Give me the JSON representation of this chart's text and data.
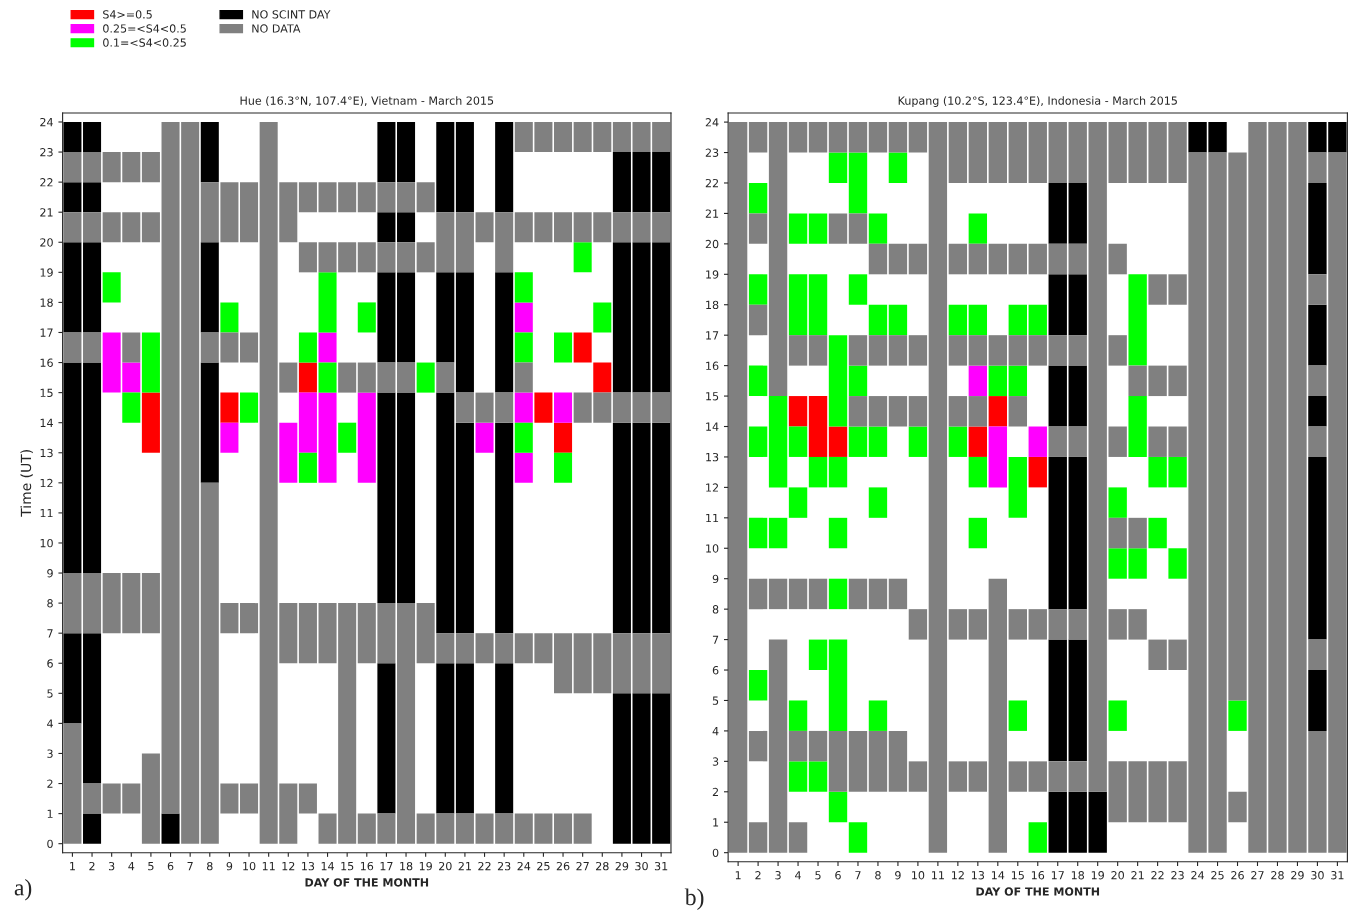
{
  "chart_data": [
    {
      "type": "bar",
      "title": "Hue (16.3°N, 107.4°E), Vietnam - March 2015",
      "xlabel": "DAY OF THE MONTH",
      "ylabel": "Time (UT)",
      "legend": "top left",
      "annotations": [
        "a)"
      ],
      "xlim": [
        0.5,
        31.5
      ],
      "xticks": [
        1,
        2,
        3,
        4,
        5,
        6,
        7,
        8,
        9,
        10,
        11,
        12,
        13,
        14,
        15,
        16,
        17,
        18,
        19,
        20,
        21,
        22,
        23,
        24,
        25,
        26,
        27,
        28,
        29,
        30,
        31
      ],
      "ylim": [
        -0.3,
        24.3
      ],
      "yticks": [
        0,
        1,
        2,
        3,
        4,
        5,
        6,
        7,
        8,
        9,
        10,
        11,
        12,
        13,
        14,
        15,
        16,
        17,
        18,
        19,
        20,
        21,
        22,
        23,
        24
      ],
      "series": [
        {
          "name": "S4>=0.5",
          "color": "#ff0000",
          "x": [
            5,
            9,
            13,
            25,
            26,
            27,
            28
          ],
          "base": [
            13,
            14,
            15,
            14,
            13,
            16,
            15
          ],
          "values": [
            2,
            1,
            1,
            1,
            1,
            1,
            1
          ]
        },
        {
          "name": "0.25=<S4<0.5",
          "color": "#ff00ff",
          "x": [
            3,
            4,
            9,
            12,
            13,
            14,
            16,
            22,
            24,
            26
          ],
          "base": [
            15,
            15,
            13,
            12,
            13,
            12,
            12,
            13,
            12,
            14
          ],
          "values": [
            2,
            1,
            1,
            2,
            2,
            3,
            3,
            1,
            1,
            1
          ]
        },
        {
          "color": "#ff00ff",
          "x": [
            14,
            24
          ],
          "base": [
            16,
            14
          ],
          "values": [
            1,
            1
          ]
        },
        {
          "color": "#ff00ff",
          "x": [
            24
          ],
          "base": [
            17
          ],
          "values": [
            1
          ]
        },
        {
          "name": "0.1=<S4<0.25",
          "color": "#00ff00",
          "x": [
            3,
            4,
            5,
            9,
            10,
            13,
            14,
            15,
            16,
            19,
            24,
            26,
            27,
            28
          ],
          "base": [
            18,
            14,
            15,
            17,
            14,
            12,
            15,
            13,
            17,
            15,
            13,
            12,
            19,
            17
          ],
          "values": [
            1,
            1,
            2,
            1,
            1,
            1,
            1,
            1,
            1,
            1,
            1,
            1,
            1,
            1
          ]
        },
        {
          "color": "#00ff00",
          "x": [
            13,
            14,
            24,
            26
          ],
          "base": [
            16,
            17,
            16,
            16
          ],
          "values": [
            1,
            2,
            1,
            1
          ]
        },
        {
          "color": "#00ff00",
          "x": [
            24
          ],
          "base": [
            18
          ],
          "values": [
            1
          ]
        },
        {
          "name": "NO SCINT DAY",
          "color": "#000000",
          "x": [
            1,
            2,
            6,
            8,
            17,
            18,
            20,
            21,
            23,
            29,
            30,
            31
          ],
          "base": [
            4,
            0,
            0,
            12,
            1,
            8,
            1,
            1,
            1,
            0,
            0,
            0
          ],
          "values": [
            3,
            1,
            1,
            4,
            5,
            7,
            5,
            5,
            5,
            5,
            5,
            5
          ]
        },
        {
          "color": "#000000",
          "x": [
            1,
            2,
            8,
            17,
            18,
            20,
            21,
            23,
            29,
            30,
            31
          ],
          "base": [
            9,
            2,
            17,
            8,
            16,
            7,
            7,
            7,
            7,
            7,
            7
          ],
          "values": [
            7,
            5,
            3,
            7,
            3,
            8,
            7,
            7,
            7,
            7,
            7
          ]
        },
        {
          "color": "#000000",
          "x": [
            1,
            2,
            8,
            17,
            18,
            20,
            21,
            23,
            29,
            30,
            31
          ],
          "base": [
            17,
            9,
            22,
            16,
            20,
            16,
            15,
            15,
            15,
            15,
            15
          ],
          "values": [
            3,
            7,
            2,
            3,
            1,
            3,
            4,
            4,
            5,
            5,
            5
          ]
        },
        {
          "color": "#000000",
          "x": [
            1,
            2,
            17,
            18,
            20,
            21,
            23,
            29,
            30,
            31
          ],
          "base": [
            21,
            17,
            20,
            22,
            21,
            21,
            21,
            21,
            21,
            21
          ],
          "values": [
            1,
            3,
            1,
            2,
            3,
            3,
            3,
            2,
            2,
            2
          ]
        },
        {
          "color": "#000000",
          "x": [
            1,
            2,
            17
          ],
          "base": [
            23,
            21,
            22
          ],
          "values": [
            1,
            1,
            2
          ]
        },
        {
          "color": "#000000",
          "x": [
            2
          ],
          "base": [
            23
          ],
          "values": [
            1
          ]
        },
        {
          "name": "NO DATA",
          "color": "#808080",
          "x": [
            1,
            2,
            3,
            4,
            5,
            6,
            7,
            8,
            9,
            10,
            11,
            12,
            13,
            14,
            15,
            16,
            17,
            18,
            19,
            20,
            21,
            22,
            23,
            24,
            25,
            26,
            27,
            28,
            29,
            30,
            31
          ],
          "base": [
            0,
            1,
            1,
            1,
            0,
            1,
            0,
            0,
            1,
            1,
            0,
            0,
            1,
            0,
            0,
            0,
            0,
            0,
            0,
            0,
            0,
            0,
            0,
            0,
            0,
            0,
            0,
            5,
            5,
            5,
            5
          ],
          "values": [
            4,
            1,
            1,
            1,
            3,
            23,
            24,
            12,
            1,
            1,
            24,
            2,
            1,
            1,
            8,
            1,
            1,
            8,
            1,
            1,
            1,
            1,
            1,
            1,
            1,
            1,
            1,
            2,
            2,
            2,
            2
          ]
        },
        {
          "color": "#808080",
          "x": [
            1,
            2,
            3,
            4,
            5,
            8,
            9,
            10,
            12,
            13,
            14,
            15,
            16,
            17,
            18,
            19,
            20,
            21,
            22,
            23,
            24,
            25,
            26,
            27,
            28,
            29,
            30,
            31
          ],
          "base": [
            7,
            7,
            7,
            7,
            7,
            16,
            7,
            7,
            6,
            6,
            6,
            15,
            6,
            6,
            15,
            6,
            6,
            6,
            6,
            6,
            6,
            6,
            5,
            5,
            14,
            14,
            14,
            14
          ],
          "values": [
            2,
            2,
            2,
            2,
            2,
            1,
            1,
            1,
            2,
            2,
            2,
            1,
            2,
            2,
            1,
            2,
            1,
            1,
            1,
            1,
            1,
            1,
            2,
            2,
            1,
            1,
            1,
            1
          ]
        },
        {
          "color": "#808080",
          "x": [
            1,
            2,
            3,
            4,
            5,
            8,
            9,
            10,
            12,
            13,
            14,
            15,
            16,
            17,
            18,
            19,
            20,
            21,
            22,
            23,
            24,
            25,
            26,
            27,
            28,
            29,
            30,
            31
          ],
          "base": [
            16,
            16,
            20,
            16,
            20,
            20,
            16,
            16,
            15,
            19,
            19,
            19,
            15,
            15,
            19,
            19,
            15,
            14,
            14,
            14,
            15,
            20,
            20,
            14,
            20,
            20,
            20,
            20
          ],
          "values": [
            1,
            1,
            1,
            1,
            1,
            2,
            1,
            1,
            1,
            1,
            1,
            1,
            1,
            1,
            1,
            1,
            1,
            1,
            1,
            1,
            1,
            1,
            1,
            1,
            1,
            1,
            1,
            1
          ]
        },
        {
          "color": "#808080",
          "x": [
            1,
            2,
            3,
            4,
            5,
            9,
            10,
            12,
            13,
            14,
            15,
            16,
            17,
            18,
            19,
            20,
            21,
            22,
            23,
            24,
            25,
            26,
            27,
            28,
            29,
            30,
            31
          ],
          "base": [
            20,
            20,
            22,
            20,
            22,
            20,
            20,
            20,
            21,
            21,
            21,
            19,
            19,
            21,
            21,
            19,
            19,
            20,
            19,
            20,
            23,
            23,
            20,
            23,
            23,
            23,
            23
          ],
          "values": [
            1,
            1,
            1,
            1,
            1,
            2,
            2,
            2,
            1,
            1,
            1,
            1,
            1,
            1,
            1,
            2,
            2,
            1,
            2,
            1,
            1,
            1,
            1,
            1,
            1,
            1,
            1
          ]
        },
        {
          "color": "#808080",
          "x": [
            1,
            2,
            4,
            16,
            17,
            24,
            27
          ],
          "base": [
            22,
            22,
            22,
            21,
            21,
            23,
            23
          ],
          "values": [
            1,
            1,
            1,
            1,
            1,
            1,
            1
          ]
        }
      ]
    },
    {
      "type": "bar",
      "title": "Kupang (10.2°S, 123.4°E), Indonesia - March 2015",
      "xlabel": "DAY OF THE MONTH",
      "annotations": [
        "b)"
      ],
      "xlim": [
        0.5,
        31.5
      ],
      "xticks": [
        1,
        2,
        3,
        4,
        5,
        6,
        7,
        8,
        9,
        10,
        11,
        12,
        13,
        14,
        15,
        16,
        17,
        18,
        19,
        20,
        21,
        22,
        23,
        24,
        25,
        26,
        27,
        28,
        29,
        30,
        31
      ],
      "ylim": [
        -0.3,
        24.3
      ],
      "yticks": [
        0,
        1,
        2,
        3,
        4,
        5,
        6,
        7,
        8,
        9,
        10,
        11,
        12,
        13,
        14,
        15,
        16,
        17,
        18,
        19,
        20,
        21,
        22,
        23,
        24
      ],
      "series": [
        {
          "color": "#ff0000",
          "x": [
            4,
            5,
            6,
            13,
            14,
            16
          ],
          "base": [
            14,
            13,
            13,
            13,
            14,
            12
          ],
          "values": [
            1,
            2,
            1,
            1,
            1,
            1
          ]
        },
        {
          "color": "#ff00ff",
          "x": [
            13,
            14,
            16
          ],
          "base": [
            15,
            12,
            13
          ],
          "values": [
            1,
            2,
            1
          ]
        },
        {
          "color": "#00ff00",
          "x": [
            2,
            3,
            4,
            5,
            6,
            7,
            8,
            9,
            10,
            12,
            13,
            14,
            15,
            16,
            20,
            21,
            22,
            23,
            26
          ],
          "base": [
            5,
            10,
            2,
            2,
            1,
            0,
            4,
            17,
            13,
            13,
            10,
            15,
            4,
            0,
            4,
            9,
            10,
            9,
            4
          ],
          "values": [
            1,
            1,
            1,
            1,
            1,
            1,
            1,
            1,
            1,
            1,
            1,
            1,
            1,
            1,
            1,
            1,
            1,
            1,
            1
          ]
        },
        {
          "color": "#00ff00",
          "x": [
            2,
            3,
            4,
            5,
            6,
            7,
            8,
            9,
            12,
            13,
            15,
            16,
            20,
            21,
            22,
            23
          ],
          "base": [
            10,
            12,
            4,
            6,
            4,
            13,
            11,
            22,
            17,
            12,
            11,
            17,
            9,
            13,
            12,
            12
          ],
          "values": [
            1,
            3,
            1,
            1,
            3,
            1,
            1,
            1,
            1,
            1,
            2,
            1,
            1,
            2,
            1,
            1
          ]
        },
        {
          "color": "#00ff00",
          "x": [
            2,
            4,
            5,
            6,
            7,
            8,
            13,
            15,
            20,
            21
          ],
          "base": [
            13,
            11,
            12,
            8,
            15,
            13,
            17,
            15,
            11,
            16
          ],
          "values": [
            1,
            1,
            1,
            1,
            1,
            1,
            1,
            1,
            1,
            3
          ]
        },
        {
          "color": "#00ff00",
          "x": [
            2,
            4,
            5,
            6,
            7,
            8,
            13,
            15
          ],
          "base": [
            15,
            13,
            17,
            10,
            18,
            17,
            20,
            17
          ],
          "values": [
            1,
            1,
            2,
            1,
            1,
            1,
            1,
            1
          ]
        },
        {
          "color": "#00ff00",
          "x": [
            2,
            4,
            5,
            6,
            7,
            8
          ],
          "base": [
            18,
            17,
            20,
            12,
            21,
            20
          ],
          "values": [
            1,
            2,
            1,
            1,
            2,
            1
          ]
        },
        {
          "color": "#00ff00",
          "x": [
            2,
            4,
            6
          ],
          "base": [
            21,
            20,
            14
          ],
          "values": [
            1,
            1,
            3
          ]
        },
        {
          "color": "#00ff00",
          "x": [
            6
          ],
          "base": [
            22
          ],
          "values": [
            1
          ]
        },
        {
          "color": "#000000",
          "x": [
            17,
            18,
            19,
            24,
            25,
            30,
            31
          ],
          "base": [
            0,
            0,
            0,
            23,
            23,
            4,
            23
          ],
          "values": [
            2,
            2,
            2,
            1,
            1,
            2,
            1
          ]
        },
        {
          "color": "#000000",
          "x": [
            17,
            18,
            30
          ],
          "base": [
            3,
            3,
            7
          ],
          "values": [
            4,
            4,
            6
          ]
        },
        {
          "color": "#000000",
          "x": [
            17,
            18,
            30
          ],
          "base": [
            8,
            8,
            14
          ],
          "values": [
            5,
            5,
            1
          ]
        },
        {
          "color": "#000000",
          "x": [
            17,
            18,
            30
          ],
          "base": [
            14,
            14,
            16
          ],
          "values": [
            2,
            2,
            2
          ]
        },
        {
          "color": "#000000",
          "x": [
            17,
            18,
            30
          ],
          "base": [
            17,
            17,
            19
          ],
          "values": [
            2,
            2,
            3
          ]
        },
        {
          "color": "#000000",
          "x": [
            17,
            18,
            30
          ],
          "base": [
            20,
            20,
            23
          ],
          "values": [
            2,
            2,
            1
          ]
        },
        {
          "color": "#808080",
          "x": [
            1,
            2,
            3,
            4,
            5,
            6,
            7,
            8,
            9,
            10,
            11,
            12,
            13,
            14,
            15,
            16,
            17,
            18,
            19,
            20,
            21,
            22,
            23,
            24,
            25,
            26,
            27,
            28,
            29,
            30,
            31
          ],
          "base": [
            0,
            0,
            0,
            0,
            3,
            2,
            2,
            2,
            2,
            2,
            0,
            2,
            2,
            0,
            2,
            2,
            2,
            2,
            2,
            1,
            1,
            1,
            1,
            0,
            0,
            1,
            0,
            0,
            0,
            0,
            0
          ],
          "values": [
            24,
            1,
            7,
            1,
            1,
            2,
            2,
            2,
            2,
            1,
            24,
            1,
            1,
            9,
            1,
            1,
            1,
            1,
            22,
            2,
            2,
            2,
            2,
            23,
            23,
            1,
            24,
            24,
            24,
            4,
            23
          ]
        },
        {
          "color": "#808080",
          "x": [
            2,
            3,
            4,
            5,
            6,
            7,
            8,
            9,
            10,
            12,
            13,
            14,
            15,
            16,
            17,
            18,
            20,
            21,
            22,
            23,
            26,
            30
          ],
          "base": [
            3,
            8,
            3,
            8,
            20,
            8,
            8,
            8,
            7,
            7,
            7,
            16,
            7,
            7,
            7,
            7,
            7,
            7,
            6,
            6,
            5,
            6
          ],
          "values": [
            1,
            1,
            1,
            1,
            1,
            1,
            1,
            1,
            1,
            1,
            1,
            1,
            1,
            1,
            1,
            1,
            1,
            1,
            1,
            1,
            18,
            1
          ]
        },
        {
          "color": "#808080",
          "x": [
            2,
            3,
            4,
            5,
            6,
            7,
            8,
            9,
            10,
            12,
            13,
            14,
            15,
            16,
            17,
            18,
            20,
            21,
            22,
            23,
            30
          ],
          "base": [
            8,
            15,
            8,
            16,
            23,
            14,
            14,
            14,
            14,
            14,
            14,
            19,
            14,
            16,
            13,
            13,
            10,
            10,
            13,
            13,
            13
          ],
          "values": [
            1,
            9,
            1,
            1,
            1,
            1,
            1,
            1,
            1,
            1,
            1,
            1,
            1,
            1,
            1,
            1,
            1,
            1,
            1,
            1,
            1
          ]
        },
        {
          "color": "#808080",
          "x": [
            2,
            4,
            5,
            7,
            8,
            9,
            10,
            12,
            13,
            14,
            15,
            16,
            17,
            18,
            20,
            21,
            22,
            23,
            30
          ],
          "base": [
            17,
            16,
            23,
            16,
            16,
            16,
            16,
            16,
            16,
            22,
            16,
            19,
            16,
            16,
            13,
            15,
            15,
            15,
            15
          ],
          "values": [
            1,
            1,
            1,
            1,
            1,
            1,
            1,
            1,
            1,
            2,
            1,
            1,
            1,
            1,
            1,
            1,
            1,
            1,
            1
          ]
        },
        {
          "color": "#808080",
          "x": [
            2,
            4,
            7,
            8,
            9,
            10,
            12,
            13,
            15,
            16,
            17,
            18,
            20,
            21,
            22,
            23,
            30
          ],
          "base": [
            20,
            23,
            20,
            19,
            19,
            19,
            19,
            19,
            19,
            22,
            19,
            19,
            16,
            22,
            18,
            18,
            18
          ],
          "values": [
            1,
            1,
            1,
            1,
            1,
            1,
            1,
            1,
            1,
            2,
            1,
            1,
            1,
            2,
            1,
            1,
            1
          ]
        },
        {
          "color": "#808080",
          "x": [
            2,
            7,
            8,
            9,
            10,
            12,
            13,
            15,
            17,
            18,
            20,
            22,
            23,
            30
          ],
          "base": [
            23,
            23,
            23,
            23,
            23,
            22,
            22,
            22,
            22,
            22,
            19,
            22,
            22,
            22
          ],
          "values": [
            1,
            1,
            1,
            1,
            1,
            2,
            2,
            2,
            2,
            2,
            1,
            2,
            2,
            1
          ]
        },
        {
          "color": "#808080",
          "x": [
            20
          ],
          "base": [
            22
          ],
          "values": [
            2
          ]
        }
      ]
    }
  ]
}
